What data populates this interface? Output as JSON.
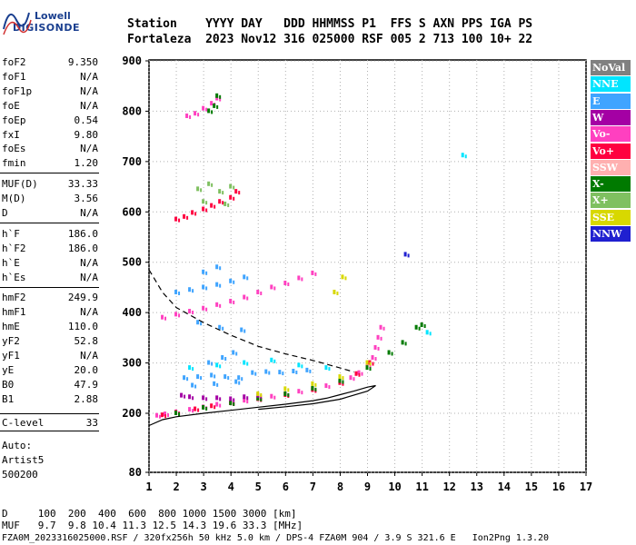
{
  "logo": {
    "line1": "Lowell",
    "line2": "DIGISONDE"
  },
  "header": {
    "line1": "Station    YYYY DAY   DDD HHMMSS P1  FFS S AXN PPS IGA PS",
    "line2": "Fortaleza  2023 Nov12 316 025000 RSF 005 2 713 100 10+ 22"
  },
  "params": [
    {
      "name": "foF2",
      "value": "9.350"
    },
    {
      "name": "foF1",
      "value": "N/A"
    },
    {
      "name": "foF1p",
      "value": "N/A"
    },
    {
      "name": "foE",
      "value": "N/A"
    },
    {
      "name": "foEp",
      "value": "0.54"
    },
    {
      "name": "fxI",
      "value": "9.80"
    },
    {
      "name": "foEs",
      "value": "N/A"
    },
    {
      "name": "fmin",
      "value": "1.20"
    },
    {
      "name": "MUF(D)",
      "value": "33.33"
    },
    {
      "name": "M(D)",
      "value": "3.56"
    },
    {
      "name": "D",
      "value": "N/A"
    },
    {
      "name": "h`F",
      "value": "186.0"
    },
    {
      "name": "h`F2",
      "value": "186.0"
    },
    {
      "name": "h`E",
      "value": "N/A"
    },
    {
      "name": "h`Es",
      "value": "N/A"
    },
    {
      "name": "hmF2",
      "value": "249.9"
    },
    {
      "name": "hmF1",
      "value": "N/A"
    },
    {
      "name": "hmE",
      "value": "110.0"
    },
    {
      "name": "yF2",
      "value": "52.8"
    },
    {
      "name": "yF1",
      "value": "N/A"
    },
    {
      "name": "yE",
      "value": "20.0"
    },
    {
      "name": "B0",
      "value": "47.9"
    },
    {
      "name": "B1",
      "value": "2.88"
    },
    {
      "name": "C-level",
      "value": "33"
    }
  ],
  "notes": {
    "auto": "Auto:",
    "artist": "Artist5",
    "code": "500200"
  },
  "legend": [
    {
      "label": "NoVal",
      "color": "#808080"
    },
    {
      "label": "NNE",
      "color": "#00e5ff"
    },
    {
      "label": "E",
      "color": "#3fa4ff"
    },
    {
      "label": "W",
      "color": "#a400a4"
    },
    {
      "label": "Vo-",
      "color": "#ff40c0"
    },
    {
      "label": "Vo+",
      "color": "#ff0040"
    },
    {
      "label": "SSW",
      "color": "#ffb0b0"
    },
    {
      "label": "X-",
      "color": "#007a00"
    },
    {
      "label": "X+",
      "color": "#7fc060"
    },
    {
      "label": "SSE",
      "color": "#d8d800"
    },
    {
      "label": "NNW",
      "color": "#2020d0"
    }
  ],
  "bottom": {
    "line1": "D     100  200  400  600  800 1000 1500 3000 [km]",
    "line2": "MUF   9.7  9.8 10.4 11.3 12.5 14.3 19.6 33.3 [MHz]",
    "line3": "FZA0M_2023316025000.RSF / 320fx256h 50 kHz 5.0 km / DPS-4 FZA0M 904 / 3.9 S 321.6 E   Ion2Png 1.3.20"
  },
  "chart_data": {
    "type": "scatter",
    "xlim": [
      1,
      17
    ],
    "ylim": [
      80,
      900
    ],
    "x_ticks": [
      1,
      2,
      3,
      4,
      5,
      6,
      7,
      8,
      9,
      10,
      11,
      12,
      13,
      14,
      15,
      16,
      17
    ],
    "y_ticks": [
      80,
      200,
      300,
      400,
      500,
      600,
      700,
      800,
      900
    ],
    "grid": true,
    "profile_curve": [
      [
        1.0,
        175
      ],
      [
        1.5,
        187
      ],
      [
        2.0,
        193
      ],
      [
        3.0,
        200
      ],
      [
        4.0,
        206
      ],
      [
        5.0,
        212
      ],
      [
        6.0,
        218
      ],
      [
        7.0,
        225
      ],
      [
        7.5,
        230
      ],
      [
        8.0,
        237
      ],
      [
        8.5,
        244
      ],
      [
        9.0,
        252
      ],
      [
        9.3,
        255
      ],
      [
        9.0,
        244
      ],
      [
        8.0,
        228
      ],
      [
        7.0,
        219
      ],
      [
        6.0,
        213
      ],
      [
        5.0,
        208
      ]
    ],
    "muf_curve": [
      [
        1.0,
        485
      ],
      [
        1.5,
        440
      ],
      [
        2.0,
        410
      ],
      [
        3.0,
        380
      ],
      [
        4.0,
        355
      ],
      [
        5.0,
        333
      ],
      [
        6.0,
        318
      ],
      [
        7.0,
        305
      ],
      [
        8.0,
        290
      ],
      [
        8.5,
        282
      ]
    ],
    "traces": [
      {
        "color": "#ff40c0",
        "points": [
          [
            1.3,
            195
          ],
          [
            1.6,
            198
          ],
          [
            2.0,
            202
          ],
          [
            2.5,
            207
          ],
          [
            3.0,
            212
          ],
          [
            3.5,
            217
          ],
          [
            4.0,
            221
          ],
          [
            4.5,
            225
          ],
          [
            5.0,
            229
          ],
          [
            5.5,
            233
          ],
          [
            6.0,
            238
          ],
          [
            6.5,
            243
          ],
          [
            7.0,
            248
          ],
          [
            7.5,
            254
          ],
          [
            8.0,
            262
          ],
          [
            8.4,
            270
          ],
          [
            8.7,
            280
          ],
          [
            9.0,
            295
          ],
          [
            9.2,
            310
          ],
          [
            9.3,
            330
          ],
          [
            9.4,
            350
          ],
          [
            9.5,
            370
          ]
        ]
      },
      {
        "color": "#ff0040",
        "points": [
          [
            1.5,
            196
          ],
          [
            2.0,
            201
          ],
          [
            2.7,
            208
          ],
          [
            3.3,
            214
          ],
          [
            4.0,
            220
          ],
          [
            5.0,
            228
          ],
          [
            6.0,
            236
          ],
          [
            7.0,
            246
          ],
          [
            8.0,
            260
          ],
          [
            8.6,
            278
          ],
          [
            9.1,
            300
          ]
        ]
      },
      {
        "color": "#007a00",
        "points": [
          [
            2.0,
            200
          ],
          [
            3.0,
            211
          ],
          [
            4.0,
            220
          ],
          [
            5.0,
            229
          ],
          [
            6.0,
            238
          ],
          [
            7.0,
            249
          ],
          [
            8.0,
            264
          ],
          [
            9.0,
            290
          ],
          [
            9.8,
            320
          ],
          [
            10.3,
            340
          ],
          [
            10.8,
            370
          ],
          [
            11.0,
            375
          ]
        ]
      },
      {
        "color": "#a400a4",
        "points": [
          [
            2.2,
            235
          ],
          [
            2.5,
            232
          ],
          [
            3.0,
            230
          ],
          [
            3.5,
            230
          ],
          [
            4.0,
            228
          ],
          [
            4.5,
            232
          ],
          [
            5.0,
            235
          ]
        ]
      },
      {
        "color": "#3fa4ff",
        "points": [
          [
            2.3,
            270
          ],
          [
            2.8,
            272
          ],
          [
            3.3,
            275
          ],
          [
            3.8,
            272
          ],
          [
            4.3,
            270
          ],
          [
            4.8,
            280
          ],
          [
            5.3,
            282
          ],
          [
            5.8,
            281
          ],
          [
            6.3,
            283
          ],
          [
            6.8,
            285
          ],
          [
            3.2,
            300
          ],
          [
            3.7,
            310
          ],
          [
            4.1,
            320
          ],
          [
            2.6,
            255
          ],
          [
            3.4,
            258
          ],
          [
            4.2,
            262
          ]
        ]
      },
      {
        "color": "#d8d800",
        "points": [
          [
            5.0,
            238
          ],
          [
            6.0,
            248
          ],
          [
            7.0,
            258
          ],
          [
            8.0,
            272
          ],
          [
            9.0,
            300
          ],
          [
            7.8,
            440
          ],
          [
            8.1,
            470
          ]
        ]
      },
      {
        "color": "#00e5ff",
        "points": [
          [
            2.5,
            290
          ],
          [
            3.5,
            295
          ],
          [
            4.5,
            300
          ],
          [
            5.5,
            305
          ],
          [
            6.5,
            295
          ],
          [
            7.5,
            290
          ],
          [
            11.2,
            360
          ],
          [
            12.5,
            712
          ]
        ]
      },
      {
        "color": "#ff40c0",
        "points": [
          [
            1.5,
            390
          ],
          [
            2.0,
            396
          ],
          [
            2.5,
            402
          ],
          [
            3.0,
            408
          ],
          [
            3.5,
            415
          ],
          [
            4.0,
            422
          ],
          [
            4.5,
            430
          ],
          [
            5.0,
            440
          ],
          [
            5.5,
            450
          ],
          [
            6.0,
            458
          ],
          [
            6.5,
            468
          ],
          [
            7.0,
            478
          ]
        ]
      },
      {
        "color": "#3fa4ff",
        "points": [
          [
            2.0,
            440
          ],
          [
            2.5,
            445
          ],
          [
            3.0,
            450
          ],
          [
            3.5,
            455
          ],
          [
            4.0,
            462
          ],
          [
            4.5,
            470
          ],
          [
            3.0,
            480
          ],
          [
            3.5,
            490
          ],
          [
            2.8,
            380
          ],
          [
            3.6,
            370
          ],
          [
            4.4,
            365
          ]
        ]
      },
      {
        "color": "#ff0040",
        "points": [
          [
            2.0,
            585
          ],
          [
            2.3,
            590
          ],
          [
            2.6,
            598
          ],
          [
            3.0,
            605
          ],
          [
            3.3,
            612
          ],
          [
            3.6,
            620
          ],
          [
            4.0,
            628
          ],
          [
            4.2,
            640
          ]
        ]
      },
      {
        "color": "#7fc060",
        "points": [
          [
            2.8,
            645
          ],
          [
            3.2,
            655
          ],
          [
            3.6,
            640
          ],
          [
            4.0,
            650
          ],
          [
            3.0,
            620
          ],
          [
            3.8,
            615
          ]
        ]
      },
      {
        "color": "#ff40c0",
        "points": [
          [
            2.4,
            790
          ],
          [
            2.7,
            795
          ],
          [
            3.0,
            805
          ],
          [
            3.3,
            815
          ],
          [
            3.5,
            825
          ]
        ]
      },
      {
        "color": "#007a00",
        "points": [
          [
            3.2,
            800
          ],
          [
            3.4,
            810
          ],
          [
            3.5,
            830
          ]
        ]
      },
      {
        "color": "#2020d0",
        "points": [
          [
            10.4,
            515
          ]
        ]
      }
    ]
  }
}
